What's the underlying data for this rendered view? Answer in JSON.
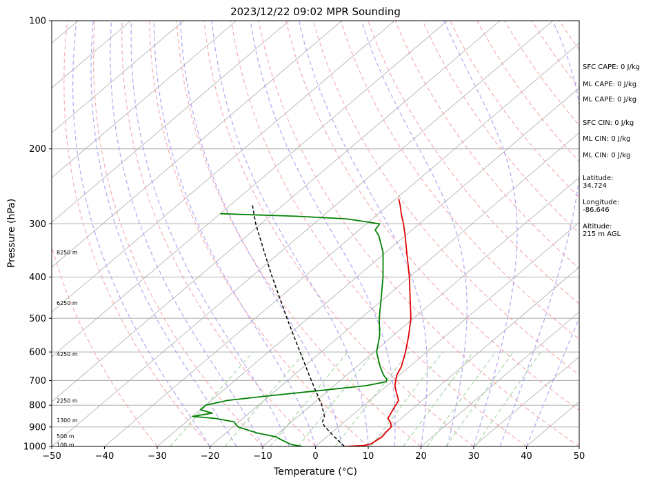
{
  "chart_data": {
    "type": "line",
    "title": "2023/12/22 09:02 MPR Sounding",
    "xlabel": "Temperature (°C)",
    "ylabel": "Pressure (hPa)",
    "xlim": [
      -50,
      50
    ],
    "ylim": [
      1000,
      100
    ],
    "y_scale": "log",
    "skew": "skew-T log-P",
    "x_ticks": [
      -50,
      -40,
      -30,
      -20,
      -10,
      0,
      10,
      20,
      30,
      40,
      50
    ],
    "y_ticks": [
      100,
      200,
      300,
      400,
      500,
      600,
      700,
      800,
      900,
      1000
    ],
    "grid": "horizontal isobars and skewed isotherms",
    "series": [
      {
        "color": "#e00000",
        "style": "solid",
        "points": [
          {
            "p": 1000,
            "t": 5.5
          },
          {
            "p": 995,
            "t": 9.0
          },
          {
            "p": 985,
            "t": 10.0
          },
          {
            "p": 970,
            "t": 10.2
          },
          {
            "p": 950,
            "t": 10.5
          },
          {
            "p": 925,
            "t": 10.2
          },
          {
            "p": 900,
            "t": 10.0
          },
          {
            "p": 880,
            "t": 9.0
          },
          {
            "p": 860,
            "t": 7.5
          },
          {
            "p": 840,
            "t": 7.0
          },
          {
            "p": 820,
            "t": 6.5
          },
          {
            "p": 800,
            "t": 6.0
          },
          {
            "p": 780,
            "t": 5.5
          },
          {
            "p": 750,
            "t": 3.5
          },
          {
            "p": 720,
            "t": 1.5
          },
          {
            "p": 700,
            "t": 0.5
          },
          {
            "p": 680,
            "t": -0.5
          },
          {
            "p": 650,
            "t": -1.5
          },
          {
            "p": 600,
            "t": -4.0
          },
          {
            "p": 550,
            "t": -7.0
          },
          {
            "p": 500,
            "t": -10.5
          },
          {
            "p": 450,
            "t": -15.0
          },
          {
            "p": 400,
            "t": -20.0
          },
          {
            "p": 350,
            "t": -26.0
          },
          {
            "p": 320,
            "t": -30.0
          },
          {
            "p": 300,
            "t": -33.0
          },
          {
            "p": 285,
            "t": -35.5
          },
          {
            "p": 270,
            "t": -38.0
          },
          {
            "p": 262,
            "t": -39.5
          }
        ]
      },
      {
        "color": "#008000",
        "style": "solid",
        "points": [
          {
            "p": 1000,
            "t": -2.5
          },
          {
            "p": 990,
            "t": -5.0
          },
          {
            "p": 960,
            "t": -8.5
          },
          {
            "p": 950,
            "t": -9.5
          },
          {
            "p": 930,
            "t": -14.0
          },
          {
            "p": 900,
            "t": -19.0
          },
          {
            "p": 875,
            "t": -21.0
          },
          {
            "p": 860,
            "t": -25.0
          },
          {
            "p": 850,
            "t": -30.0
          },
          {
            "p": 835,
            "t": -27.0
          },
          {
            "p": 820,
            "t": -30.0
          },
          {
            "p": 800,
            "t": -30.0
          },
          {
            "p": 780,
            "t": -27.0
          },
          {
            "p": 760,
            "t": -20.0
          },
          {
            "p": 740,
            "t": -12.0
          },
          {
            "p": 720,
            "t": -4.0
          },
          {
            "p": 705,
            "t": -1.0
          },
          {
            "p": 695,
            "t": -1.5
          },
          {
            "p": 680,
            "t": -3.0
          },
          {
            "p": 650,
            "t": -5.5
          },
          {
            "p": 600,
            "t": -9.5
          },
          {
            "p": 550,
            "t": -12.5
          },
          {
            "p": 500,
            "t": -16.5
          },
          {
            "p": 450,
            "t": -20.5
          },
          {
            "p": 400,
            "t": -25.0
          },
          {
            "p": 350,
            "t": -30.5
          },
          {
            "p": 320,
            "t": -35.0
          },
          {
            "p": 310,
            "t": -37.0
          },
          {
            "p": 300,
            "t": -37.5
          },
          {
            "p": 292,
            "t": -45.0
          },
          {
            "p": 288,
            "t": -55.0
          },
          {
            "p": 284,
            "t": -70.0
          }
        ]
      },
      {
        "color": "#000000",
        "style": "dashed",
        "points": [
          {
            "p": 1000,
            "t": 5.5
          },
          {
            "p": 950,
            "t": 1.5
          },
          {
            "p": 900,
            "t": -2.5
          },
          {
            "p": 880,
            "t": -4.0
          },
          {
            "p": 850,
            "t": -5.0
          },
          {
            "p": 800,
            "t": -8.0
          },
          {
            "p": 700,
            "t": -15.5
          },
          {
            "p": 600,
            "t": -24.0
          },
          {
            "p": 500,
            "t": -34.0
          },
          {
            "p": 400,
            "t": -46.0
          },
          {
            "p": 350,
            "t": -53.0
          },
          {
            "p": 300,
            "t": -61.0
          },
          {
            "p": 270,
            "t": -66.0
          }
        ]
      }
    ],
    "height_labels": [
      {
        "p": 990,
        "text": "100 m"
      },
      {
        "p": 945,
        "text": "500 m"
      },
      {
        "p": 868,
        "text": "1300 m"
      },
      {
        "p": 780,
        "text": "2250 m"
      },
      {
        "p": 607,
        "text": "4250 m"
      },
      {
        "p": 460,
        "text": "6250 m"
      },
      {
        "p": 350,
        "text": "8250 m"
      }
    ],
    "background_lines": {
      "isotherm_color": "#aaaaaa",
      "dry_adiabat_color": "#f4a6a6",
      "moist_adiabat_color": "#a99ef0",
      "mixing_ratio_color": "#9fd39f"
    }
  },
  "side_panel": {
    "sfc_cape": "SFC CAPE: 0 J/kg",
    "ml_cape_1": "ML CAPE: 0 J/kg",
    "ml_cape_2": "ML CAPE: 0 J/kg",
    "sfc_cin": "SFC CIN: 0 J/kg",
    "ml_cin_1": "ML CIN: 0 J/kg",
    "ml_cin_2": "ML CIN: 0 J/kg",
    "latitude": "Latitude:\n34.724",
    "longitude": "Longitude:\n-86.646",
    "altitude": "Altitude:\n215 m AGL"
  }
}
